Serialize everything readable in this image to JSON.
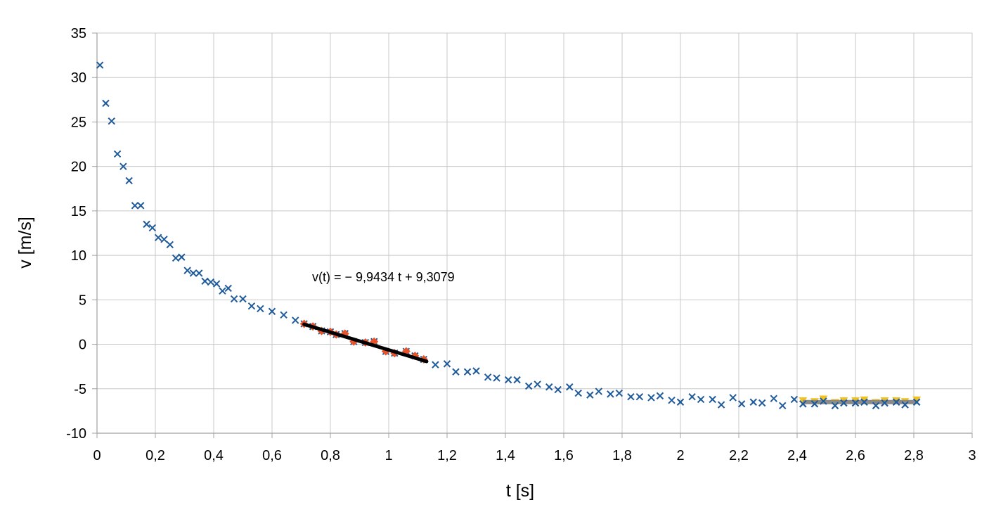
{
  "chart_data": {
    "type": "scatter",
    "title": "",
    "xlabel": "t [s]",
    "ylabel": "v [m/s]",
    "xlim": [
      0,
      3
    ],
    "ylim": [
      -10,
      35
    ],
    "x_ticks": [
      0,
      0.2,
      0.4,
      0.6,
      0.8,
      1,
      1.2,
      1.4,
      1.6,
      1.8,
      2,
      2.2,
      2.4,
      2.6,
      2.8,
      3
    ],
    "x_tick_labels": [
      "0",
      "0,2",
      "0,4",
      "0,6",
      "0,8",
      "1",
      "1,2",
      "1,4",
      "1,6",
      "1,8",
      "2",
      "2,2",
      "2,4",
      "2,6",
      "2,8",
      "3"
    ],
    "y_ticks": [
      -10,
      -5,
      0,
      5,
      10,
      15,
      20,
      25,
      30,
      35
    ],
    "y_tick_labels": [
      "-10",
      "-5",
      "0",
      "5",
      "10",
      "15",
      "20",
      "25",
      "30",
      "35"
    ],
    "grid": true,
    "legend": "none",
    "colors": {
      "main_marker": "#1f5a9a",
      "fit_marker": "#e8532a",
      "fit_line": "#000000",
      "terminal_marker": "#f2c21a",
      "terminal_line": "#8a8a8a",
      "grid": "#c8c8c8",
      "axis": "#a0a0a0"
    },
    "annotation": "v(t) = − 9,9434 t + 9,3079",
    "series": [
      {
        "marker": "x",
        "points": [
          [
            0.01,
            31.4
          ],
          [
            0.03,
            27.1
          ],
          [
            0.05,
            25.1
          ],
          [
            0.07,
            21.4
          ],
          [
            0.09,
            20.0
          ],
          [
            0.11,
            18.4
          ],
          [
            0.13,
            15.6
          ],
          [
            0.15,
            15.6
          ],
          [
            0.17,
            13.5
          ],
          [
            0.19,
            13.1
          ],
          [
            0.21,
            12.0
          ],
          [
            0.23,
            11.8
          ],
          [
            0.25,
            11.2
          ],
          [
            0.27,
            9.7
          ],
          [
            0.29,
            9.8
          ],
          [
            0.31,
            8.3
          ],
          [
            0.33,
            8.0
          ],
          [
            0.35,
            8.0
          ],
          [
            0.37,
            7.1
          ],
          [
            0.39,
            7.0
          ],
          [
            0.41,
            6.8
          ],
          [
            0.43,
            6.0
          ],
          [
            0.45,
            6.3
          ],
          [
            0.47,
            5.1
          ],
          [
            0.5,
            5.1
          ],
          [
            0.53,
            4.3
          ],
          [
            0.56,
            4.0
          ],
          [
            0.6,
            3.7
          ],
          [
            0.64,
            3.3
          ],
          [
            0.68,
            2.7
          ],
          [
            0.71,
            2.3
          ],
          [
            0.74,
            2.0
          ],
          [
            0.77,
            1.5
          ],
          [
            0.8,
            1.4
          ],
          [
            0.82,
            1.1
          ],
          [
            0.85,
            1.2
          ],
          [
            0.88,
            0.3
          ],
          [
            0.92,
            0.2
          ],
          [
            0.95,
            0.3
          ],
          [
            0.99,
            -0.8
          ],
          [
            1.02,
            -1.0
          ],
          [
            1.06,
            -0.8
          ],
          [
            1.09,
            -1.3
          ],
          [
            1.12,
            -1.7
          ],
          [
            1.16,
            -2.3
          ],
          [
            1.2,
            -2.2
          ],
          [
            1.23,
            -3.1
          ],
          [
            1.27,
            -3.1
          ],
          [
            1.3,
            -3.0
          ],
          [
            1.34,
            -3.7
          ],
          [
            1.37,
            -3.8
          ],
          [
            1.41,
            -4.0
          ],
          [
            1.44,
            -4.0
          ],
          [
            1.48,
            -4.7
          ],
          [
            1.51,
            -4.5
          ],
          [
            1.55,
            -4.8
          ],
          [
            1.58,
            -5.1
          ],
          [
            1.62,
            -4.8
          ],
          [
            1.65,
            -5.5
          ],
          [
            1.69,
            -5.7
          ],
          [
            1.72,
            -5.3
          ],
          [
            1.76,
            -5.6
          ],
          [
            1.79,
            -5.5
          ],
          [
            1.83,
            -5.9
          ],
          [
            1.86,
            -5.9
          ],
          [
            1.9,
            -6.0
          ],
          [
            1.93,
            -5.8
          ],
          [
            1.97,
            -6.3
          ],
          [
            2.0,
            -6.5
          ],
          [
            2.04,
            -5.9
          ],
          [
            2.07,
            -6.2
          ],
          [
            2.11,
            -6.2
          ],
          [
            2.14,
            -6.8
          ],
          [
            2.18,
            -6.0
          ],
          [
            2.21,
            -6.7
          ],
          [
            2.25,
            -6.5
          ],
          [
            2.28,
            -6.6
          ],
          [
            2.32,
            -6.1
          ],
          [
            2.35,
            -6.9
          ],
          [
            2.39,
            -6.2
          ],
          [
            2.42,
            -6.7
          ],
          [
            2.46,
            -6.7
          ],
          [
            2.49,
            -6.4
          ],
          [
            2.53,
            -6.9
          ],
          [
            2.56,
            -6.6
          ],
          [
            2.6,
            -6.6
          ],
          [
            2.63,
            -6.5
          ],
          [
            2.67,
            -6.9
          ],
          [
            2.7,
            -6.6
          ],
          [
            2.74,
            -6.5
          ],
          [
            2.77,
            -6.8
          ],
          [
            2.81,
            -6.5
          ]
        ]
      },
      {
        "marker": "diamond",
        "points": [
          [
            0.71,
            2.3
          ],
          [
            0.74,
            2.0
          ],
          [
            0.77,
            1.5
          ],
          [
            0.8,
            1.4
          ],
          [
            0.82,
            1.1
          ],
          [
            0.85,
            1.2
          ],
          [
            0.88,
            0.3
          ],
          [
            0.92,
            0.2
          ],
          [
            0.95,
            0.3
          ],
          [
            0.99,
            -0.8
          ],
          [
            1.02,
            -1.0
          ],
          [
            1.06,
            -0.8
          ],
          [
            1.09,
            -1.3
          ],
          [
            1.12,
            -1.7
          ]
        ],
        "fit": {
          "slope": -9.9434,
          "intercept": 9.3079,
          "x_range": [
            0.71,
            1.13
          ]
        }
      },
      {
        "marker": "triangle",
        "points": [
          [
            2.42,
            -6.3
          ],
          [
            2.46,
            -6.4
          ],
          [
            2.49,
            -6.1
          ],
          [
            2.53,
            -6.5
          ],
          [
            2.56,
            -6.3
          ],
          [
            2.6,
            -6.3
          ],
          [
            2.63,
            -6.2
          ],
          [
            2.67,
            -6.5
          ],
          [
            2.7,
            -6.3
          ],
          [
            2.74,
            -6.3
          ],
          [
            2.77,
            -6.4
          ],
          [
            2.81,
            -6.2
          ]
        ],
        "fit": {
          "slope": 0,
          "intercept": -6.5,
          "x_range": [
            2.42,
            2.81
          ]
        }
      }
    ]
  }
}
